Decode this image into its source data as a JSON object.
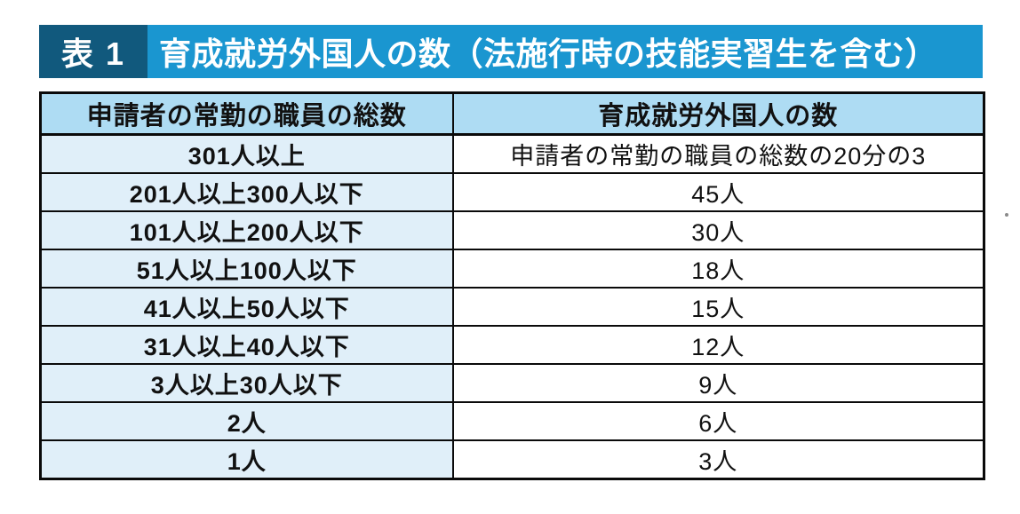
{
  "title": {
    "tag": "表 1",
    "text": "育成就労外国人の数（法施行時の技能実習生を含む）"
  },
  "table": {
    "headers": [
      "申請者の常勤の職員の総数",
      "育成就労外国人の数"
    ],
    "rows": [
      [
        "301人以上",
        "申請者の常勤の職員の総数の20分の3"
      ],
      [
        "201人以上300人以下",
        "45人"
      ],
      [
        "101人以上200人以下",
        "30人"
      ],
      [
        "51人以上100人以下",
        "18人"
      ],
      [
        "41人以上50人以下",
        "15人"
      ],
      [
        "31人以上40人以下",
        "12人"
      ],
      [
        "3人以上30人以下",
        "9人"
      ],
      [
        "2人",
        "6人"
      ],
      [
        "1人",
        "3人"
      ]
    ]
  },
  "colors": {
    "title_tag_bg": "#11597d",
    "title_bar_bg": "#1a96d0",
    "title_text": "#ffffff",
    "header_cell_bg": "#aedcf3",
    "left_cell_bg": "#e0eff9",
    "right_cell_bg": "#ffffff",
    "border": "#0a0a0a",
    "text": "#111111"
  }
}
